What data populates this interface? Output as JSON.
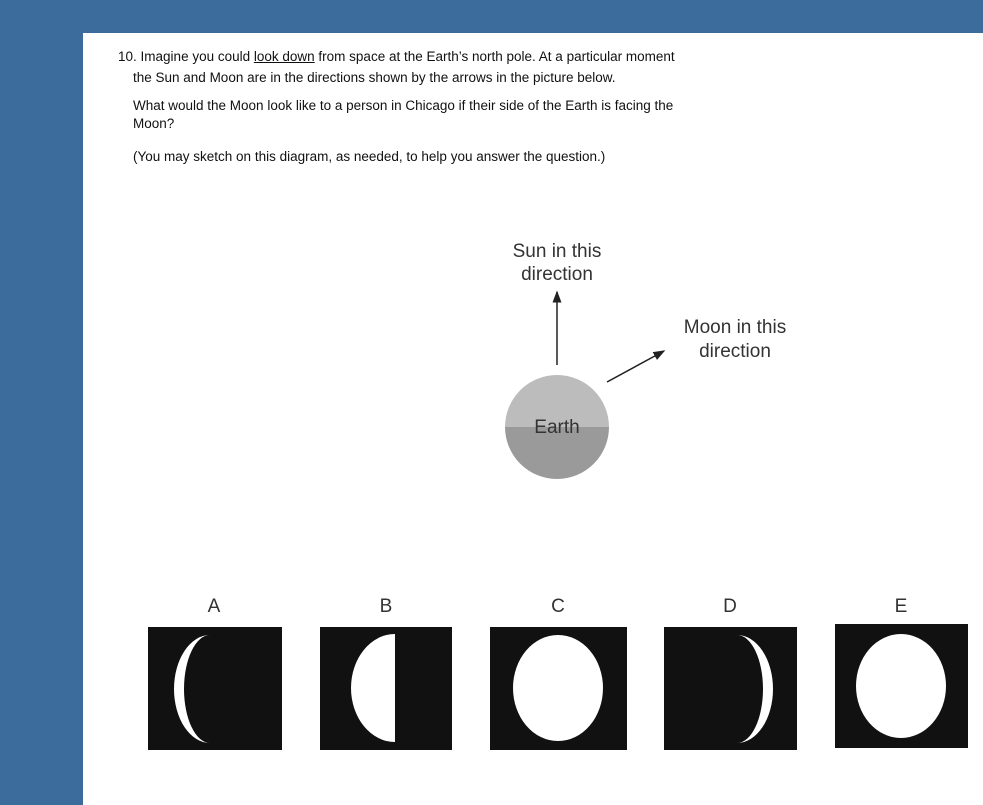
{
  "question": {
    "number": "10.",
    "text_before": "Imagine you could ",
    "underlined": "look down",
    "text_after": " from space at the Earth’s north pole.  At a particular moment",
    "line2": "the Sun and Moon are in the directions shown by the arrows in the picture below.",
    "prompt_line1": "What would the Moon look like to a person in Chicago if their side of the Earth is facing the",
    "prompt_line2": "Moon?",
    "note": "(You may sketch on this diagram, as needed, to help you answer the question.)"
  },
  "diagram": {
    "sun_label": [
      "Sun in this",
      "direction"
    ],
    "moon_label": [
      "Moon in this",
      "direction"
    ],
    "earth_label": "Earth"
  },
  "options": [
    "A",
    "B",
    "C",
    "D",
    "E"
  ]
}
